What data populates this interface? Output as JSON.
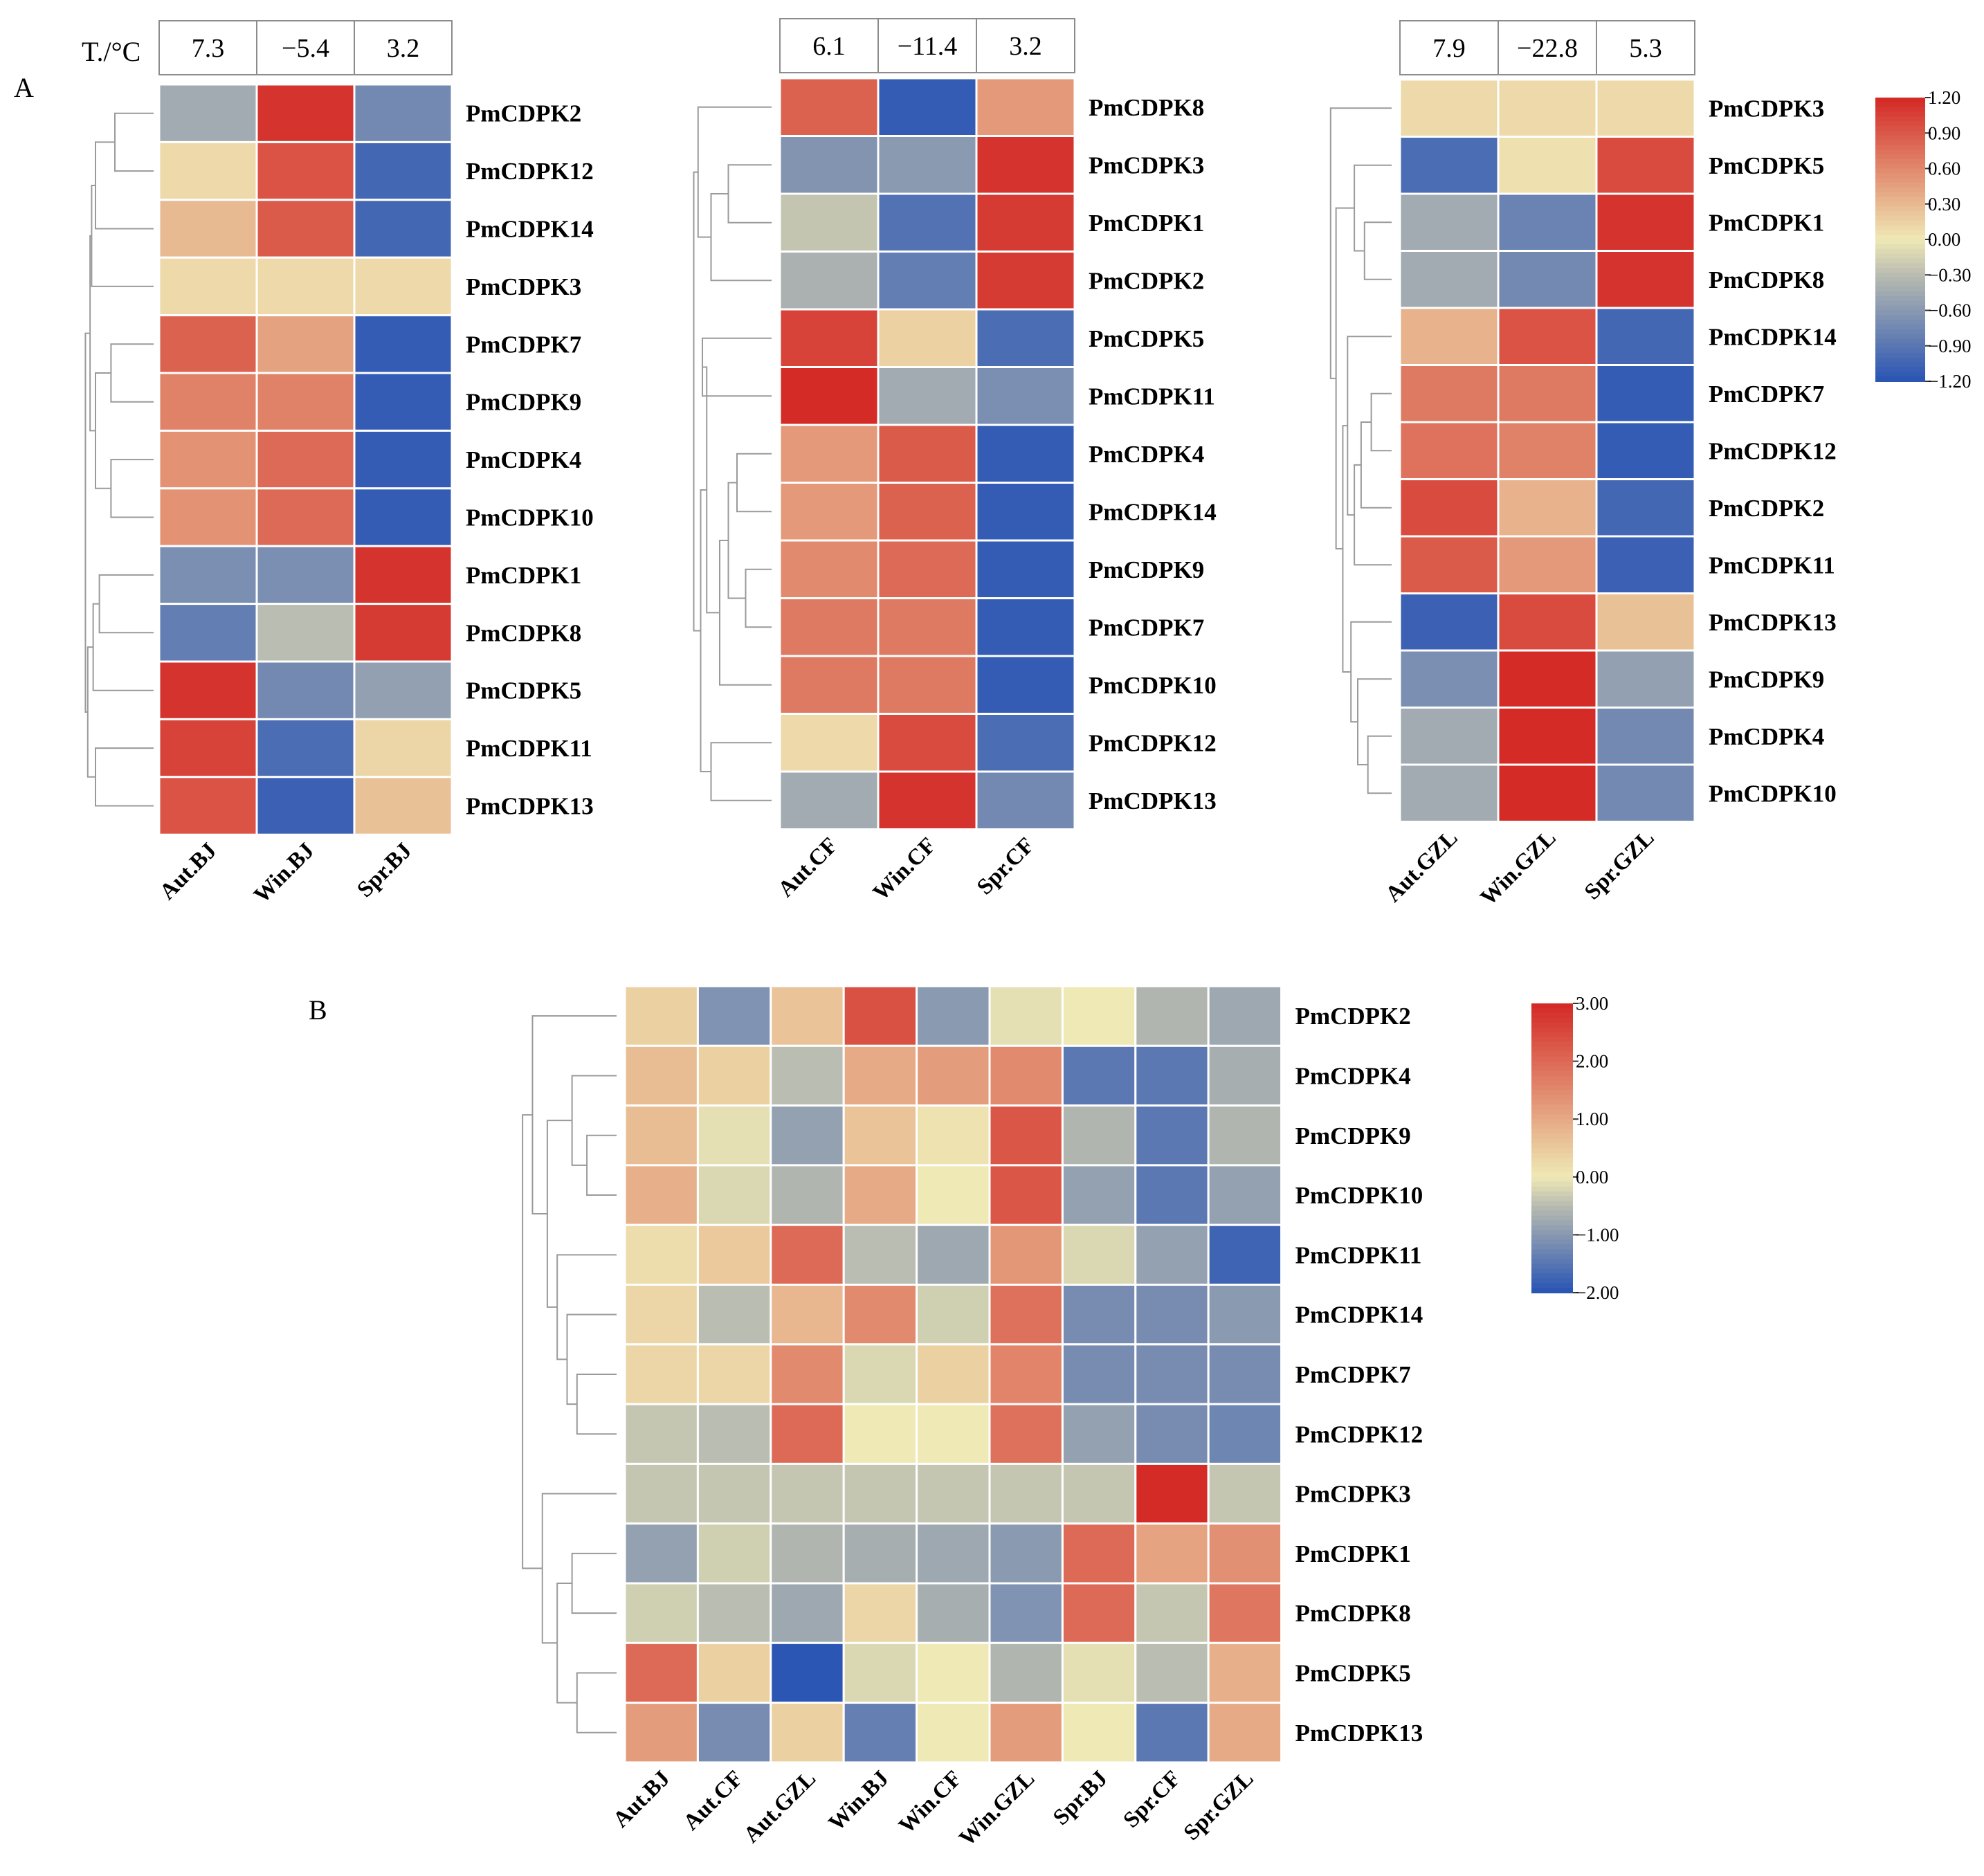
{
  "chart_data": [
    {
      "type": "heatmap",
      "panel": "A",
      "temp_label": "T./°C",
      "temps": [
        "7.3",
        "−5.4",
        "3.2"
      ],
      "columns": [
        "Aut.BJ",
        "Win.BJ",
        "Spr.BJ"
      ],
      "rows": [
        "PmCDPK2",
        "PmCDPK12",
        "PmCDPK14",
        "PmCDPK3",
        "PmCDPK7",
        "PmCDPK9",
        "PmCDPK4",
        "PmCDPK10",
        "PmCDPK1",
        "PmCDPK8",
        "PmCDPK5",
        "PmCDPK11",
        "PmCDPK13"
      ],
      "values": [
        [
          -0.45,
          1.15,
          -0.75
        ],
        [
          0.1,
          0.95,
          -1.05
        ],
        [
          0.3,
          0.9,
          -1.05
        ],
        [
          0.1,
          0.1,
          0.1
        ],
        [
          0.85,
          0.45,
          -1.15
        ],
        [
          0.65,
          0.65,
          -1.15
        ],
        [
          0.55,
          0.8,
          -1.15
        ],
        [
          0.55,
          0.8,
          -1.15
        ],
        [
          -0.7,
          -0.7,
          1.15
        ],
        [
          -0.85,
          -0.3,
          1.1
        ],
        [
          1.15,
          -0.75,
          -0.55
        ],
        [
          1.05,
          -1.0,
          0.12
        ],
        [
          0.95,
          -1.1,
          0.25
        ]
      ],
      "dendrogram": [
        [
          0,
          1,
          0.5
        ],
        [
          13,
          2,
          0.75
        ],
        [
          14,
          3,
          0.8
        ],
        [
          4,
          5,
          0.55
        ],
        [
          6,
          7,
          0.55
        ],
        [
          16,
          17,
          0.75
        ],
        [
          18,
          15,
          0.82
        ],
        [
          8,
          9,
          0.7
        ],
        [
          11,
          12,
          0.75
        ],
        [
          10,
          20,
          0.78
        ],
        [
          21,
          22,
          0.85
        ],
        [
          19,
          23,
          0.88
        ]
      ]
    },
    {
      "type": "heatmap",
      "panel": "A",
      "temps": [
        "6.1",
        "−11.4",
        "3.2"
      ],
      "columns": [
        "Aut.CF",
        "Win.CF",
        "Spr.CF"
      ],
      "rows": [
        "PmCDPK8",
        "PmCDPK3",
        "PmCDPK1",
        "PmCDPK2",
        "PmCDPK5",
        "PmCDPK11",
        "PmCDPK4",
        "PmCDPK14",
        "PmCDPK9",
        "PmCDPK7",
        "PmCDPK10",
        "PmCDPK12",
        "PmCDPK13"
      ],
      "values": [
        [
          0.85,
          -1.15,
          0.5
        ],
        [
          -0.65,
          -0.6,
          1.15
        ],
        [
          -0.25,
          -0.95,
          1.1
        ],
        [
          -0.4,
          -0.85,
          1.1
        ],
        [
          1.05,
          0.15,
          -1.0
        ],
        [
          1.2,
          -0.45,
          -0.7
        ],
        [
          0.5,
          0.9,
          -1.15
        ],
        [
          0.5,
          0.85,
          -1.15
        ],
        [
          0.6,
          0.8,
          -1.15
        ],
        [
          0.7,
          0.7,
          -1.15
        ],
        [
          0.7,
          0.7,
          -1.15
        ],
        [
          0.1,
          1.0,
          -1.0
        ],
        [
          -0.45,
          1.15,
          -0.75
        ]
      ],
      "dendrogram": [
        [
          1,
          2,
          0.5
        ],
        [
          13,
          3,
          0.7
        ],
        [
          0,
          14,
          0.85
        ],
        [
          4,
          5,
          0.8
        ],
        [
          6,
          7,
          0.4
        ],
        [
          8,
          9,
          0.3
        ],
        [
          17,
          18,
          0.5
        ],
        [
          10,
          19,
          0.6
        ],
        [
          16,
          20,
          0.75
        ],
        [
          11,
          12,
          0.7
        ],
        [
          21,
          22,
          0.82
        ],
        [
          15,
          23,
          0.9
        ]
      ]
    },
    {
      "type": "heatmap",
      "panel": "A",
      "temps": [
        "7.9",
        "−22.8",
        "5.3"
      ],
      "columns": [
        "Aut.GZL",
        "Win.GZL",
        "Spr.GZL"
      ],
      "rows": [
        "PmCDPK3",
        "PmCDPK5",
        "PmCDPK1",
        "PmCDPK8",
        "PmCDPK14",
        "PmCDPK7",
        "PmCDPK12",
        "PmCDPK2",
        "PmCDPK11",
        "PmCDPK13",
        "PmCDPK9",
        "PmCDPK4",
        "PmCDPK10"
      ],
      "values": [
        [
          0.1,
          0.1,
          0.1
        ],
        [
          -1.0,
          0.05,
          1.0
        ],
        [
          -0.45,
          -0.8,
          1.15
        ],
        [
          -0.45,
          -0.75,
          1.15
        ],
        [
          0.35,
          0.95,
          -1.05
        ],
        [
          0.7,
          0.7,
          -1.15
        ],
        [
          0.75,
          0.65,
          -1.15
        ],
        [
          1.0,
          0.35,
          -1.05
        ],
        [
          0.9,
          0.5,
          -1.1
        ],
        [
          -1.1,
          1.0,
          0.25
        ],
        [
          -0.7,
          1.2,
          -0.55
        ],
        [
          -0.45,
          1.2,
          -0.75
        ],
        [
          -0.45,
          1.2,
          -0.75
        ]
      ],
      "dendrogram": [
        [
          2,
          3,
          0.4
        ],
        [
          1,
          13,
          0.55
        ],
        [
          5,
          6,
          0.3
        ],
        [
          15,
          7,
          0.45
        ],
        [
          16,
          8,
          0.55
        ],
        [
          4,
          17,
          0.65
        ],
        [
          11,
          12,
          0.35
        ],
        [
          10,
          19,
          0.5
        ],
        [
          9,
          20,
          0.6
        ],
        [
          18,
          21,
          0.72
        ],
        [
          14,
          22,
          0.82
        ],
        [
          0,
          23,
          0.9
        ]
      ]
    },
    {
      "type": "heatmap",
      "panel": "B",
      "columns": [
        "Aut.BJ",
        "Aut.CF",
        "Aut.GZL",
        "Win.BJ",
        "Win.CF",
        "Win.GZL",
        "Spr.BJ",
        "Spr.CF",
        "Spr.GZL"
      ],
      "rows": [
        "PmCDPK2",
        "PmCDPK4",
        "PmCDPK9",
        "PmCDPK10",
        "PmCDPK11",
        "PmCDPK14",
        "PmCDPK7",
        "PmCDPK12",
        "PmCDPK3",
        "PmCDPK1",
        "PmCDPK8",
        "PmCDPK5",
        "PmCDPK13"
      ],
      "values": [
        [
          0.4,
          -1.1,
          0.6,
          2.4,
          -1.0,
          -0.1,
          0.0,
          -0.6,
          -0.8
        ],
        [
          0.7,
          0.4,
          -0.5,
          1.0,
          1.2,
          1.5,
          -1.5,
          -1.5,
          -0.7
        ],
        [
          0.7,
          -0.1,
          -0.9,
          0.6,
          0.1,
          2.3,
          -0.6,
          -1.5,
          -0.6
        ],
        [
          0.9,
          -0.2,
          -0.6,
          1.0,
          0.0,
          2.3,
          -0.9,
          -1.5,
          -0.9
        ],
        [
          0.2,
          0.5,
          2.0,
          -0.5,
          -0.8,
          1.3,
          -0.2,
          -0.9,
          -1.8
        ],
        [
          0.3,
          -0.5,
          0.8,
          1.5,
          -0.3,
          1.9,
          -1.2,
          -1.2,
          -1.0
        ],
        [
          0.3,
          0.3,
          1.5,
          -0.2,
          0.4,
          1.6,
          -1.2,
          -1.2,
          -1.2
        ],
        [
          -0.4,
          -0.5,
          2.0,
          0.0,
          0.0,
          1.9,
          -0.9,
          -1.2,
          -1.3
        ],
        [
          -0.4,
          -0.4,
          -0.4,
          -0.4,
          -0.4,
          -0.4,
          -0.4,
          3.0,
          -0.4
        ],
        [
          -0.9,
          -0.3,
          -0.6,
          -0.7,
          -0.8,
          -1.0,
          2.0,
          1.1,
          1.4
        ],
        [
          -0.3,
          -0.5,
          -0.8,
          0.3,
          -0.7,
          -1.1,
          2.0,
          -0.4,
          1.8
        ],
        [
          2.0,
          0.4,
          -2.0,
          -0.2,
          0.0,
          -0.6,
          -0.1,
          -0.5,
          0.9
        ],
        [
          1.2,
          -1.2,
          0.4,
          -1.4,
          0.0,
          1.2,
          0.0,
          -1.5,
          1.0
        ]
      ],
      "dendrogram": [
        [
          2,
          3,
          0.3
        ],
        [
          1,
          13,
          0.45
        ],
        [
          6,
          7,
          0.4
        ],
        [
          5,
          15,
          0.5
        ],
        [
          4,
          16,
          0.6
        ],
        [
          14,
          17,
          0.7
        ],
        [
          9,
          10,
          0.45
        ],
        [
          11,
          12,
          0.4
        ],
        [
          19,
          20,
          0.6
        ],
        [
          8,
          21,
          0.75
        ],
        [
          0,
          18,
          0.85
        ],
        [
          23,
          22,
          0.95
        ]
      ]
    }
  ],
  "panel_labels": {
    "a": "A",
    "b": "B"
  },
  "colorbars": {
    "a": {
      "min": -1.2,
      "max": 1.2,
      "ticks": [
        "1.20",
        "0.90",
        "0.60",
        "0.30",
        "0.00",
        "−0.30",
        "−0.60",
        "−0.90",
        "−1.20"
      ]
    },
    "b": {
      "min": -2.0,
      "max": 3.0,
      "ticks": [
        "3.00",
        "2.00",
        "1.00",
        "0.00",
        "−1.00",
        "−2.00"
      ]
    }
  },
  "colors": {
    "low": "#2c56b4",
    "mid": "#efe9b5",
    "high": "#d42b27",
    "lowmid": "#b4b8b0"
  }
}
